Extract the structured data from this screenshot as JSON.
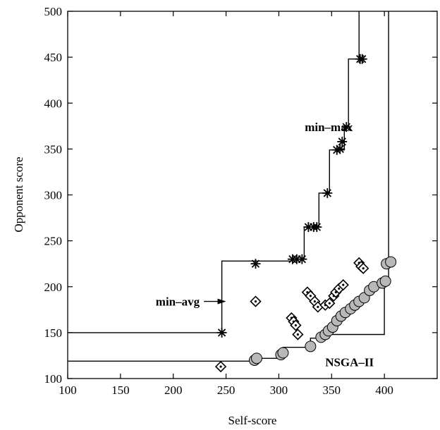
{
  "chart_data": {
    "type": "scatter",
    "title": "",
    "xlabel": "Self-score",
    "ylabel": "Opponent score",
    "xlim": [
      100,
      450
    ],
    "ylim": [
      100,
      500
    ],
    "xticks": [
      100,
      150,
      200,
      250,
      300,
      350,
      400
    ],
    "yticks": [
      100,
      150,
      200,
      250,
      300,
      350,
      400,
      450,
      500
    ],
    "grid": false,
    "annotations": [
      {
        "text": "min–max",
        "at": [
          370,
          374
        ]
      },
      {
        "text": "min–avg",
        "at": [
          225,
          184
        ],
        "arrow_to": [
          250,
          184
        ]
      },
      {
        "text": "NSGA–II",
        "at": [
          390,
          118
        ]
      }
    ],
    "series": [
      {
        "name": "min–max",
        "marker": "asterisk",
        "points": [
          [
            246,
            150
          ],
          [
            278,
            225
          ],
          [
            313,
            230
          ],
          [
            317,
            230
          ],
          [
            322,
            230
          ],
          [
            328,
            265
          ],
          [
            333,
            265
          ],
          [
            336,
            265
          ],
          [
            346,
            302
          ],
          [
            355,
            349
          ],
          [
            358,
            350
          ],
          [
            360,
            358
          ],
          [
            364,
            374
          ],
          [
            377,
            448
          ],
          [
            379,
            448
          ]
        ],
        "front": [
          [
            100,
            150
          ],
          [
            246,
            150
          ],
          [
            246,
            228
          ],
          [
            313,
            228
          ],
          [
            313,
            230
          ],
          [
            324,
            230
          ],
          [
            324,
            265
          ],
          [
            338,
            265
          ],
          [
            338,
            302
          ],
          [
            348,
            302
          ],
          [
            348,
            349
          ],
          [
            362,
            349
          ],
          [
            362,
            374
          ],
          [
            366,
            374
          ],
          [
            366,
            448
          ],
          [
            376,
            448
          ],
          [
            376,
            500
          ]
        ]
      },
      {
        "name": "min–avg",
        "marker": "diamond",
        "points": [
          [
            245,
            113
          ],
          [
            278,
            184
          ],
          [
            318,
            148
          ],
          [
            312,
            166
          ],
          [
            314,
            162
          ],
          [
            316,
            158
          ],
          [
            327,
            194
          ],
          [
            330,
            190
          ],
          [
            334,
            184
          ],
          [
            337,
            178
          ],
          [
            344,
            180
          ],
          [
            348,
            182
          ],
          [
            352,
            190
          ],
          [
            354,
            194
          ],
          [
            357,
            198
          ],
          [
            361,
            202
          ],
          [
            376,
            226
          ],
          [
            378,
            222
          ],
          [
            380,
            220
          ]
        ],
        "front": []
      },
      {
        "name": "NSGA–II",
        "marker": "circle",
        "points": [
          [
            277,
            120
          ],
          [
            279,
            122
          ],
          [
            302,
            126
          ],
          [
            304,
            128
          ],
          [
            330,
            135
          ],
          [
            340,
            145
          ],
          [
            344,
            148
          ],
          [
            347,
            152
          ],
          [
            351,
            156
          ],
          [
            355,
            163
          ],
          [
            359,
            168
          ],
          [
            363,
            172
          ],
          [
            368,
            176
          ],
          [
            372,
            180
          ],
          [
            376,
            184
          ],
          [
            381,
            188
          ],
          [
            386,
            196
          ],
          [
            390,
            200
          ],
          [
            398,
            204
          ],
          [
            401,
            206
          ],
          [
            402,
            225
          ],
          [
            406,
            227
          ]
        ],
        "front": [
          [
            100,
            119
          ],
          [
            277,
            119
          ],
          [
            277,
            122
          ],
          [
            302,
            122
          ],
          [
            302,
            126
          ],
          [
            304,
            126
          ],
          [
            304,
            134
          ],
          [
            330,
            134
          ],
          [
            330,
            144
          ],
          [
            340,
            144
          ],
          [
            340,
            148
          ],
          [
            400,
            148
          ],
          [
            400,
            202
          ],
          [
            404,
            202
          ],
          [
            404,
            500
          ]
        ]
      }
    ]
  }
}
